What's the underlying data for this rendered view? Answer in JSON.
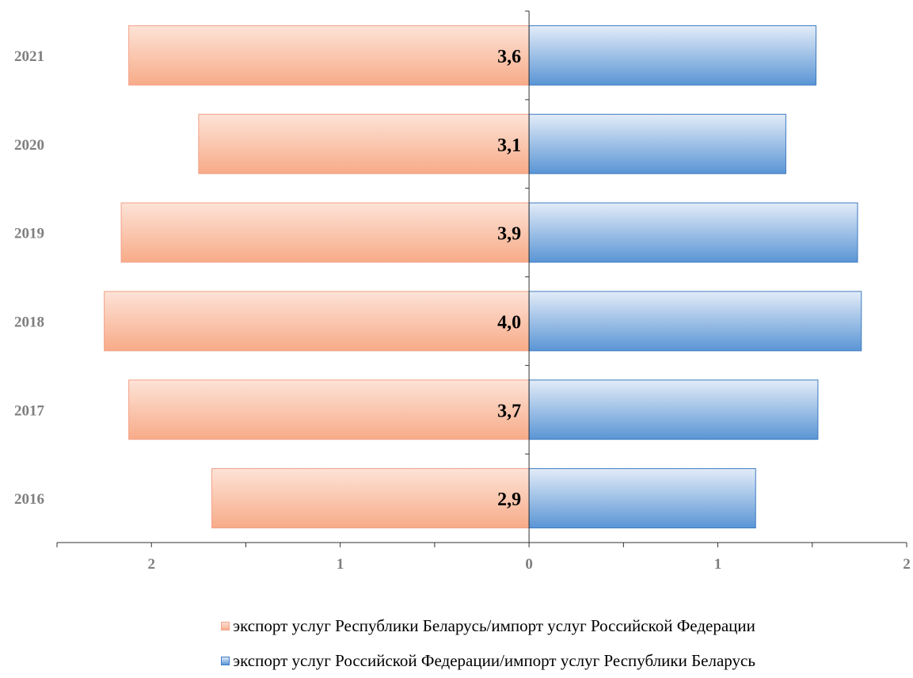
{
  "chart_data": {
    "type": "bar",
    "orientation": "horizontal",
    "layout": "diverging",
    "categories": [
      "2021",
      "2020",
      "2019",
      "2018",
      "2017",
      "2016"
    ],
    "series": [
      {
        "name": "экспорт услуг Республики Беларусь/импорт услуг Российской Федерации",
        "direction": "left",
        "values": [
          2.12,
          1.75,
          2.16,
          2.25,
          2.12,
          1.68
        ],
        "color": "#f7ad8c"
      },
      {
        "name": "экспорт услуг Российской Федерации/импорт услуг Республики Беларусь",
        "direction": "right",
        "values": [
          1.52,
          1.36,
          1.74,
          1.76,
          1.53,
          1.2
        ],
        "color": "#5b97d6"
      }
    ],
    "data_labels": [
      "3,6",
      "3,1",
      "3,9",
      "4,0",
      "3,7",
      "2,9"
    ],
    "x_ticks": [
      {
        "value": -2,
        "label": "2"
      },
      {
        "value": -1,
        "label": "1"
      },
      {
        "value": 0,
        "label": "0"
      },
      {
        "value": 1,
        "label": "1"
      },
      {
        "value": 2,
        "label": "2"
      }
    ],
    "xlim": [
      -2.5,
      2
    ],
    "minor_tick_step": 0.5,
    "grid": false,
    "legend_position": "bottom"
  }
}
